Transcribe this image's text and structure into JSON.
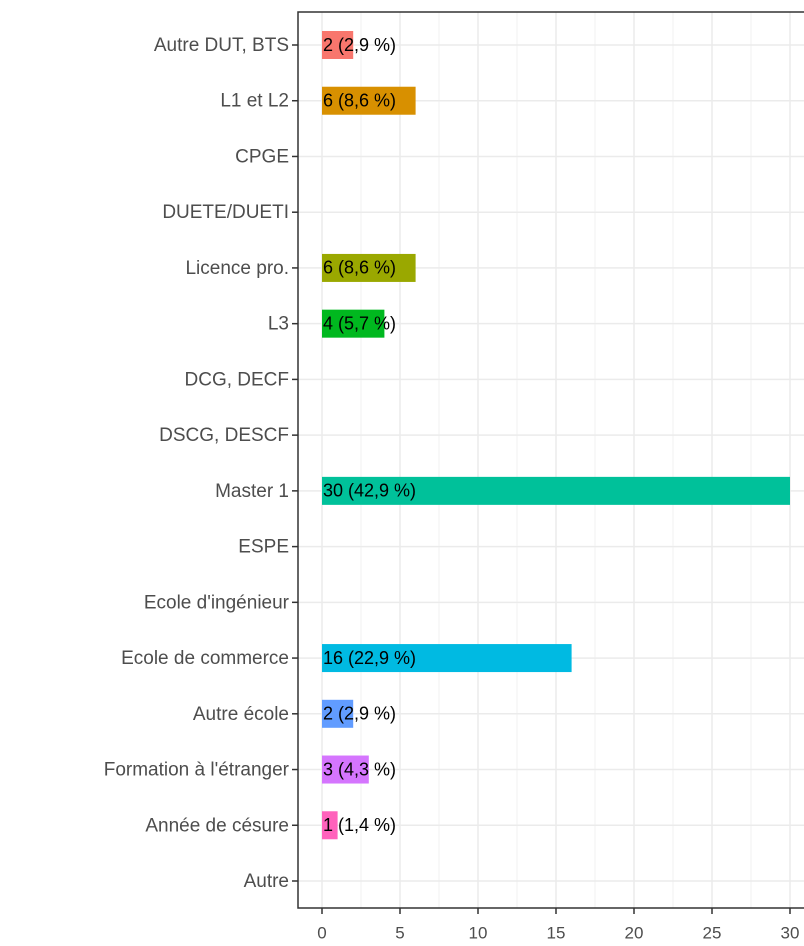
{
  "chart_data": {
    "type": "barh",
    "categories": [
      "Autre DUT, BTS",
      "L1 et L2",
      "CPGE",
      "DUETE/DUETI",
      "Licence pro.",
      "L3",
      "DCG, DECF",
      "DSCG, DESCF",
      "Master 1",
      "ESPE",
      "Ecole d'ingénieur",
      "Ecole de commerce",
      "Autre école",
      "Formation à l'étranger",
      "Année de césure",
      "Autre"
    ],
    "values": [
      2,
      6,
      0,
      0,
      6,
      4,
      0,
      0,
      30,
      0,
      0,
      16,
      2,
      3,
      1,
      0
    ],
    "value_labels": [
      "2 (2,9 %)",
      "6 (8,6 %)",
      null,
      null,
      "6 (8,6 %)",
      "4 (5,7 %)",
      null,
      null,
      "30 (42,9 %)",
      null,
      null,
      "16 (22,9 %)",
      "2 (2,9 %)",
      "3 (4,3 %)",
      "1 (1,4 %)",
      null
    ],
    "colors": [
      "#F8766D",
      "#D89000",
      "#BF9C00",
      "#A3A500",
      "#9AA800",
      "#00B81F",
      "#00C08B",
      "#00C1A9",
      "#00C19A",
      "#00BCD8",
      "#00B4F0",
      "#00BAE2",
      "#619CFF",
      "#D575FE",
      "#FF62BC",
      "#FF6C91"
    ],
    "xlim": [
      -1.5,
      31.5
    ],
    "xticks": [
      0,
      5,
      10,
      15,
      20,
      25,
      30
    ],
    "xminor": [
      2.5,
      7.5,
      12.5,
      17.5,
      22.5,
      27.5
    ],
    "grid": true
  }
}
